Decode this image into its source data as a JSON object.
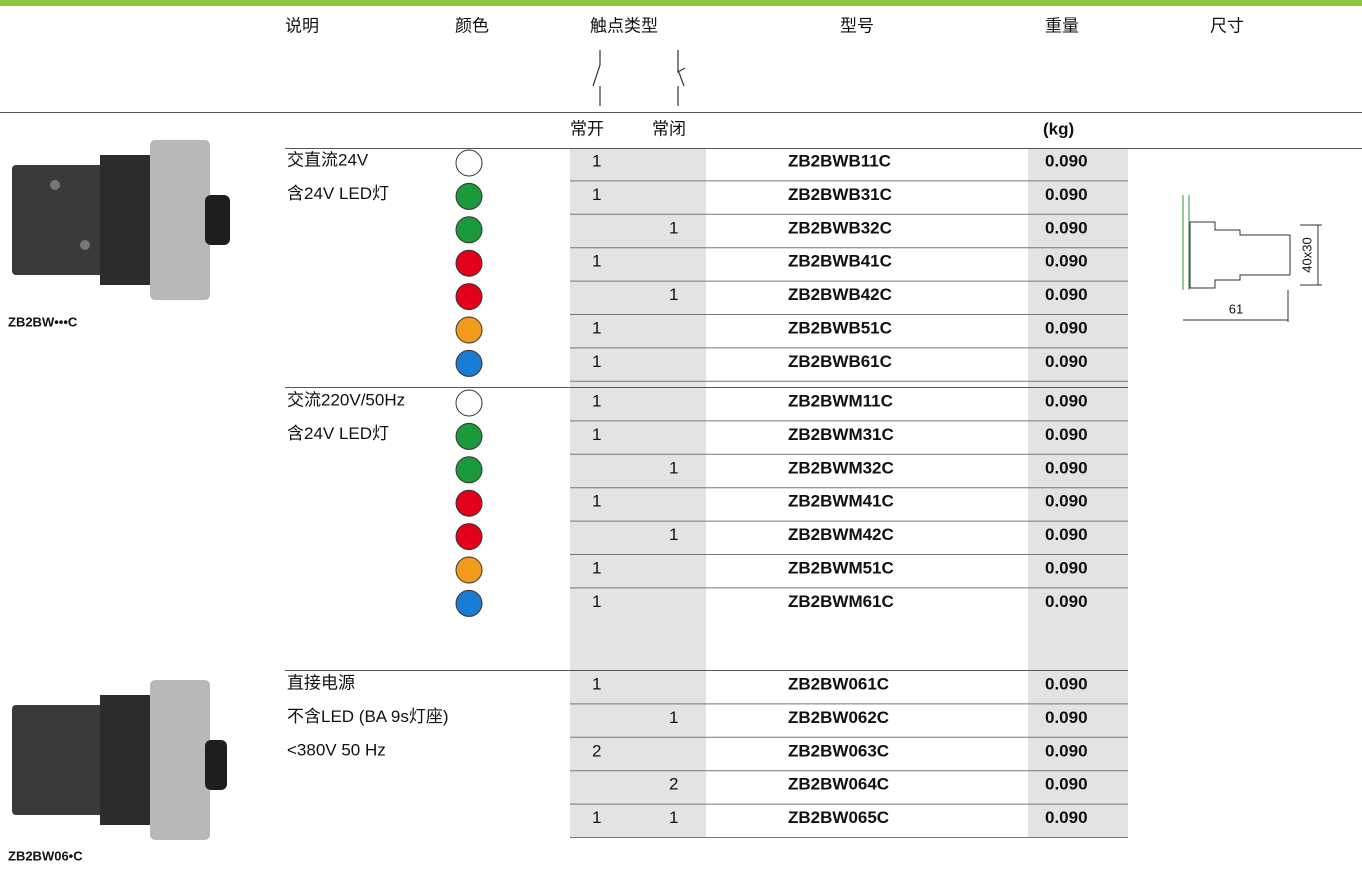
{
  "header": {
    "columns": [
      "说明",
      "颜色",
      "触点类型",
      "型号",
      "重量",
      "尺寸"
    ],
    "subcolumns": [
      "常开",
      "常闭",
      "(kg)"
    ]
  },
  "dimensions": {
    "width": "61",
    "height": "40x30"
  },
  "groups": [
    {
      "caption": "ZB2BW•••C",
      "description": [
        "交直流24V",
        "含24V LED灯"
      ],
      "rows": [
        {
          "color": "#ffffff",
          "no": "1",
          "nc": null,
          "model": "ZB2BWB11C",
          "weight": "0.090"
        },
        {
          "color": "#1a9a3a",
          "no": "1",
          "nc": null,
          "model": "ZB2BWB31C",
          "weight": "0.090"
        },
        {
          "color": "#1a9a3a",
          "no": null,
          "nc": "1",
          "model": "ZB2BWB32C",
          "weight": "0.090"
        },
        {
          "color": "#e3001b",
          "no": "1",
          "nc": null,
          "model": "ZB2BWB41C",
          "weight": "0.090"
        },
        {
          "color": "#e3001b",
          "no": null,
          "nc": "1",
          "model": "ZB2BWB42C",
          "weight": "0.090"
        },
        {
          "color": "#f39a1e",
          "no": "1",
          "nc": null,
          "model": "ZB2BWB51C",
          "weight": "0.090"
        },
        {
          "color": "#1a7ad4",
          "no": "1",
          "nc": null,
          "model": "ZB2BWB61C",
          "weight": "0.090"
        }
      ]
    },
    {
      "caption": null,
      "description": [
        "交流220V/50Hz",
        "含24V LED灯"
      ],
      "rows": [
        {
          "color": "#ffffff",
          "no": "1",
          "nc": null,
          "model": "ZB2BWM11C",
          "weight": "0.090"
        },
        {
          "color": "#1a9a3a",
          "no": "1",
          "nc": null,
          "model": "ZB2BWM31C",
          "weight": "0.090"
        },
        {
          "color": "#1a9a3a",
          "no": null,
          "nc": "1",
          "model": "ZB2BWM32C",
          "weight": "0.090"
        },
        {
          "color": "#e3001b",
          "no": "1",
          "nc": null,
          "model": "ZB2BWM41C",
          "weight": "0.090"
        },
        {
          "color": "#e3001b",
          "no": null,
          "nc": "1",
          "model": "ZB2BWM42C",
          "weight": "0.090"
        },
        {
          "color": "#f39a1e",
          "no": "1",
          "nc": null,
          "model": "ZB2BWM51C",
          "weight": "0.090"
        },
        {
          "color": "#1a7ad4",
          "no": "1",
          "nc": null,
          "model": "ZB2BWM61C",
          "weight": "0.090"
        }
      ]
    },
    {
      "caption": "ZB2BW06•C",
      "description": [
        "直接电源",
        "不含LED (BA 9s灯座)",
        "<380V 50 Hz"
      ],
      "rows": [
        {
          "color": null,
          "no": "1",
          "nc": null,
          "model": "ZB2BW061C",
          "weight": "0.090"
        },
        {
          "color": null,
          "no": null,
          "nc": "1",
          "model": "ZB2BW062C",
          "weight": "0.090"
        },
        {
          "color": null,
          "no": "2",
          "nc": null,
          "model": "ZB2BW063C",
          "weight": "0.090"
        },
        {
          "color": null,
          "no": null,
          "nc": "2",
          "model": "ZB2BW064C",
          "weight": "0.090"
        },
        {
          "color": null,
          "no": "1",
          "nc": "1",
          "model": "ZB2BW065C",
          "weight": "0.090"
        }
      ]
    }
  ]
}
